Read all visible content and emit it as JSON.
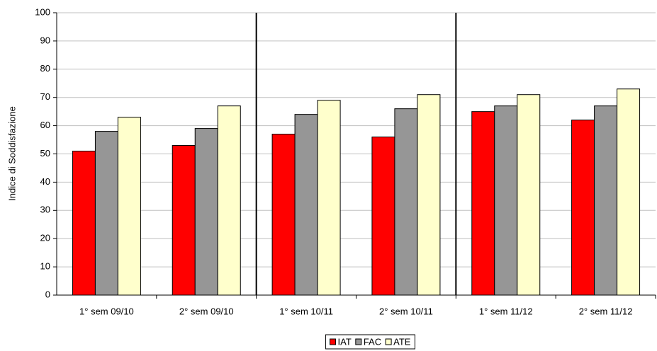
{
  "chart_data": {
    "type": "bar",
    "y_label": "Indice di Soddisfazione",
    "categories": [
      "1° sem 09/10",
      "2° sem 09/10",
      "1° sem 10/11",
      "2° sem 10/11",
      "1° sem 11/12",
      "2° sem 11/12"
    ],
    "series": [
      {
        "name": "IAT",
        "color": "#ff0000",
        "values": [
          51,
          53,
          57,
          56,
          65,
          62
        ]
      },
      {
        "name": "FAC",
        "color": "#969696",
        "values": [
          58,
          59,
          64,
          66,
          67,
          67
        ]
      },
      {
        "name": "ATE",
        "color": "#ffffcc",
        "values": [
          63,
          67,
          69,
          71,
          71,
          73
        ]
      }
    ],
    "ylim": [
      0,
      100
    ],
    "yticks": [
      0,
      10,
      20,
      30,
      40,
      50,
      60,
      70,
      80,
      90,
      100
    ],
    "grid": true,
    "legend": "bottom"
  }
}
